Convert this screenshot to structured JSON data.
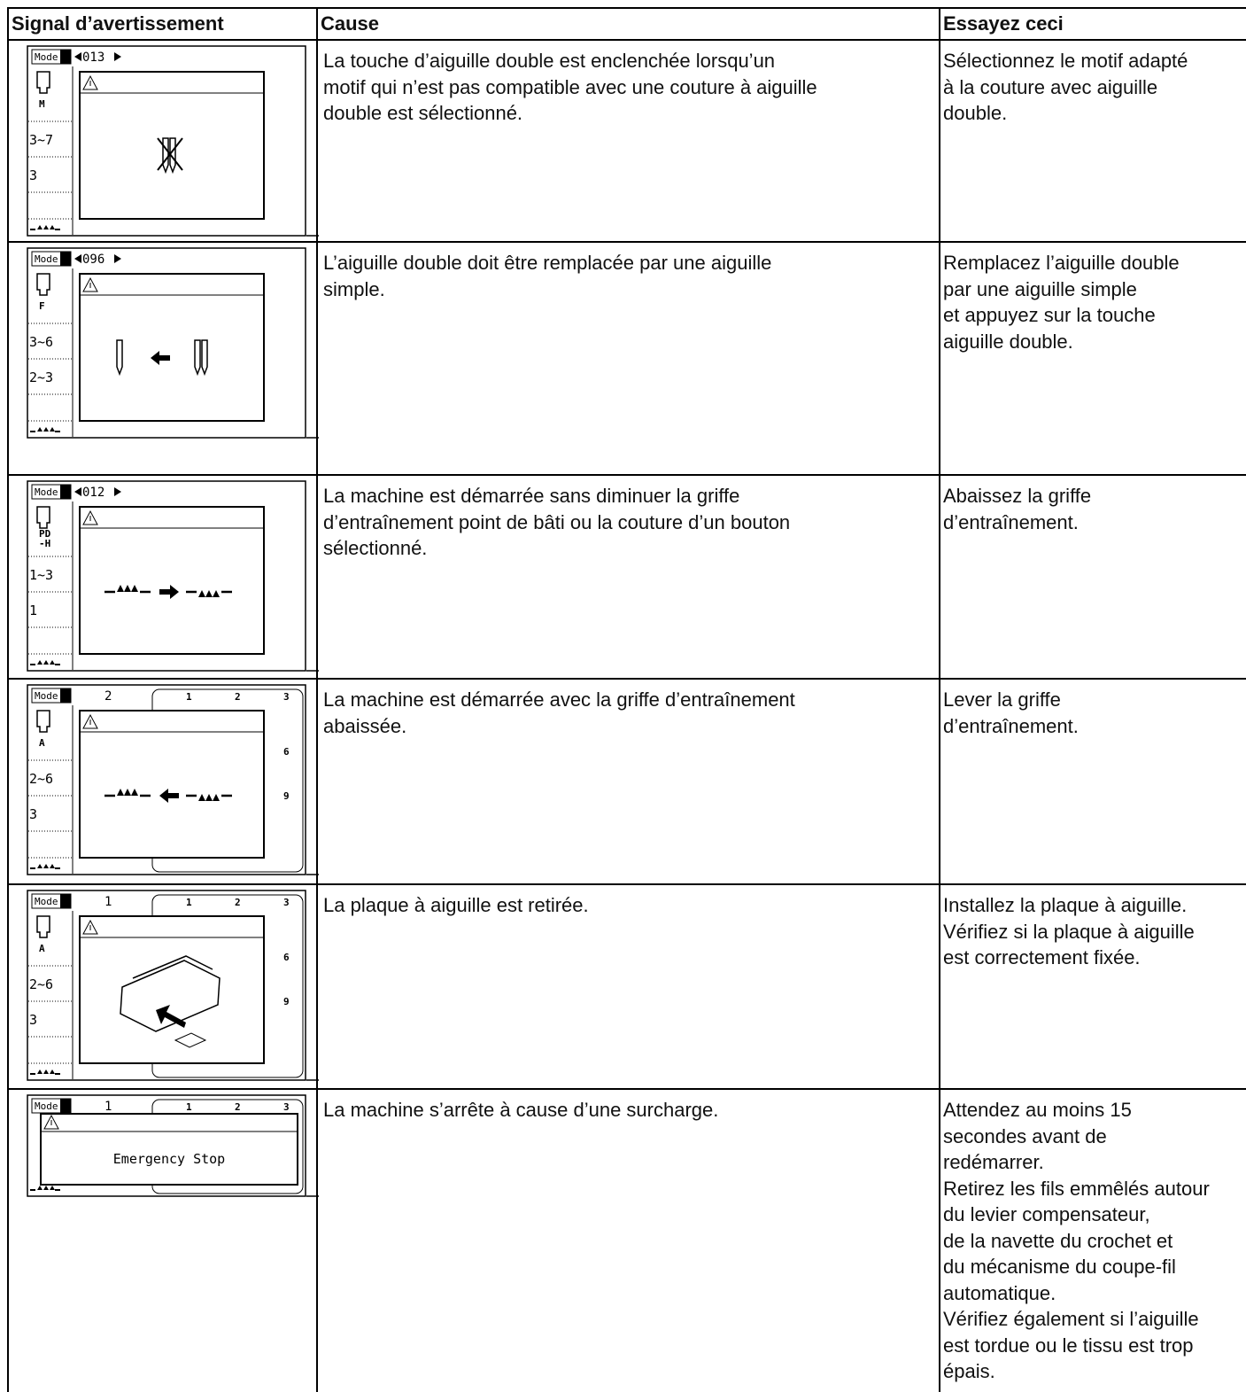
{
  "header": [
    "Signal d’avertissement",
    "Cause",
    "Essayez ceci"
  ],
  "rows": [
    {
      "screen": {
        "mode": "Mode 2",
        "pattern": "013",
        "foot": [
          "M"
        ],
        "width": "3~7",
        "length": "3"
      },
      "cause": [
        "La touche d’aiguille double est enclenchée lorsqu’un",
        "motif qui n’est pas compatible avec une couture à aiguille",
        "double est sélectionné."
      ],
      "solution": [
        "Sélectionnez le motif adapté",
        "à la couture avec aiguille",
        "double."
      ]
    },
    {
      "screen": {
        "mode": "Mode 2",
        "pattern": "096",
        "foot": [
          "F"
        ],
        "width": "3~6",
        "length": "2~3"
      },
      "cause": [
        "L’aiguille double doit être remplacée par une aiguille",
        "simple."
      ],
      "solution": [
        "Remplacez l’aiguille double",
        "par une aiguille simple",
        "et appuyez sur la touche",
        "aiguille double."
      ]
    },
    {
      "screen": {
        "mode": "Mode 2",
        "pattern": "012",
        "foot": [
          "PD",
          "-H"
        ],
        "width": "1~3",
        "length": "1"
      },
      "cause": [
        "La machine est démarrée sans diminuer la griffe",
        "d’entraînement point de bâti ou la couture d’un bouton",
        "sélectionné."
      ],
      "solution": [
        "Abaissez la griffe",
        "d’entraînement."
      ]
    },
    {
      "screen": {
        "mode": "Mode 1",
        "pattern": "2",
        "foot": [
          "A"
        ],
        "width": "2~6",
        "length": "3",
        "scale": [
          "1",
          "2",
          "3",
          "6",
          "9"
        ]
      },
      "cause": [
        "La machine est démarrée avec la griffe d’entraînement",
        "abaissée."
      ],
      "solution": [
        "Lever la griffe",
        "d’entraînement."
      ]
    },
    {
      "screen": {
        "mode": "Mode 1",
        "pattern": "1",
        "foot": [
          "A"
        ],
        "width": "2~6",
        "length": "3",
        "scale": [
          "1",
          "2",
          "3",
          "6",
          "9"
        ]
      },
      "cause": [
        "La plaque à aiguille est retirée."
      ],
      "solution": [
        "Installez la plaque à aiguille.",
        "Vérifiez si la plaque à aiguille",
        "est correctement fixée."
      ]
    },
    {
      "screen": {
        "mode": "Mode 1",
        "pattern": "1",
        "message": "Emergency Stop",
        "scale": [
          "1",
          "2",
          "3"
        ]
      },
      "cause": [
        "La machine s’arrête à cause d’une surcharge."
      ],
      "solution": [
        "Attendez au moins 15",
        "secondes avant de",
        "redémarrer.",
        "Retirez les fils emmêlés autour",
        "du levier compensateur,",
        "de la navette du crochet et",
        "du mécanisme du coupe-fil",
        "automatique.",
        "Vérifiez également si l’aiguille",
        "est tordue ou le tissu est trop",
        "épais."
      ]
    }
  ]
}
